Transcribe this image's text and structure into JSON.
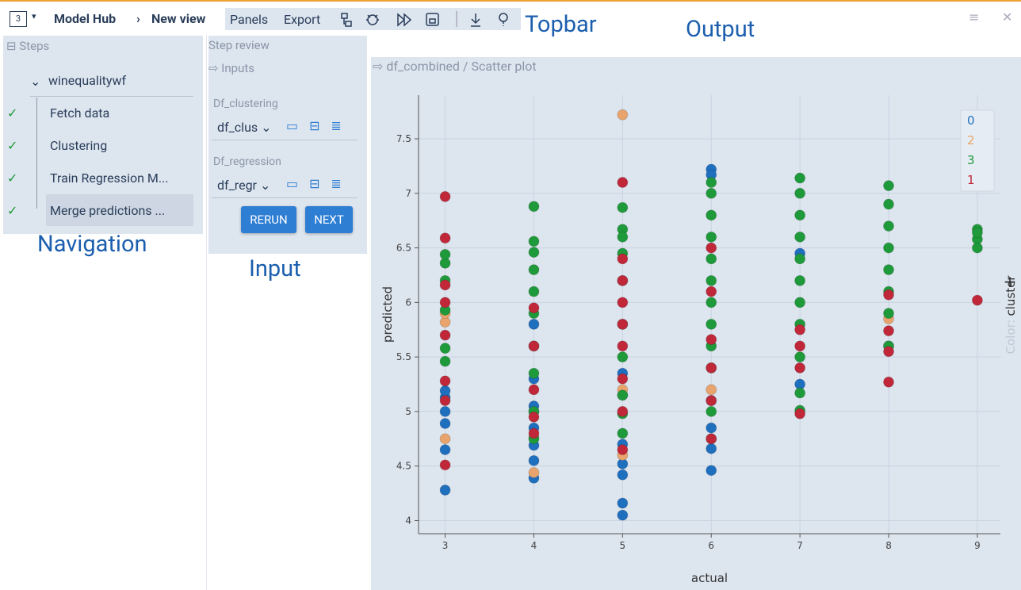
{
  "topbar": {
    "view_number": "3",
    "app": "Model Hub",
    "view": "New view",
    "menu": [
      "Panels",
      "Export"
    ]
  },
  "navigation": {
    "title": "Steps",
    "workflow": "winequalitywf",
    "steps": [
      "Fetch data",
      "Clustering",
      "Train Regression M...",
      "Merge predictions ..."
    ]
  },
  "step_review": {
    "title": "Step review",
    "section": "Inputs",
    "inputs": [
      {
        "label": "Df_clustering",
        "value": "df_clus"
      },
      {
        "label": "Df_regression",
        "value": "df_regr"
      }
    ],
    "buttons": [
      "RERUN",
      "NEXT"
    ]
  },
  "output": {
    "path": "df_combined / Scatter plot"
  },
  "annotations": [
    "Topbar",
    "Output",
    "Navigation",
    "Input"
  ],
  "chart_data": {
    "type": "scatter",
    "xlabel": "actual",
    "ylabel": "predicted",
    "legend_label": "Color:",
    "legend_title": "cluster",
    "xlim": [
      2.7,
      9.26
    ],
    "ylim": [
      3.88,
      7.9
    ],
    "xticks": [
      3,
      4,
      5,
      6,
      7,
      8,
      9
    ],
    "yticks": [
      4,
      4.5,
      5,
      5.5,
      6,
      6.5,
      7,
      7.5
    ],
    "grid": true,
    "legend_position": "upper right",
    "series": [
      {
        "name": "0",
        "color": "#1f6fbf",
        "x": [
          3,
          3,
          3,
          3,
          3,
          3,
          4,
          4,
          4,
          4,
          4,
          4,
          4,
          4,
          5,
          5,
          5,
          5,
          5,
          5,
          5,
          6,
          6,
          6,
          6,
          6,
          6,
          7,
          7,
          8
        ],
        "values": [
          4.28,
          4.65,
          4.89,
          5.0,
          5.13,
          5.19,
          4.39,
          4.55,
          4.69,
          4.85,
          5.0,
          5.05,
          5.3,
          5.8,
          4.05,
          4.16,
          4.42,
          4.52,
          4.7,
          5.15,
          5.35,
          4.46,
          4.66,
          4.85,
          5.1,
          7.22,
          7.17,
          5.25,
          6.45,
          5.6
        ]
      },
      {
        "name": "2",
        "color": "#e8a46c",
        "x": [
          3,
          3,
          3,
          4,
          4,
          5,
          5,
          5,
          6,
          8
        ],
        "values": [
          4.75,
          5.82,
          5.9,
          4.44,
          4.76,
          7.72,
          4.6,
          5.2,
          5.2,
          5.85
        ]
      },
      {
        "name": "3",
        "color": "#1f9a3a",
        "x": [
          3,
          3,
          3,
          3,
          3,
          3,
          4,
          4,
          4,
          4,
          4,
          4,
          4,
          4,
          4,
          4,
          5,
          5,
          5,
          5,
          5,
          5,
          5,
          5,
          5,
          5,
          6,
          6,
          6,
          6,
          6,
          6,
          6,
          6,
          6,
          6,
          6,
          6,
          7,
          7,
          7,
          7,
          7,
          7,
          7,
          7,
          7,
          7,
          7,
          8,
          8,
          8,
          8,
          8,
          8,
          8,
          8,
          9,
          9,
          9,
          9
        ],
        "values": [
          5.46,
          5.58,
          6.2,
          6.36,
          6.44,
          5.93,
          6.88,
          6.56,
          6.46,
          6.3,
          6.1,
          5.9,
          5.6,
          5.35,
          5.0,
          4.75,
          6.87,
          6.67,
          6.6,
          6.45,
          6.2,
          5.8,
          5.5,
          5.15,
          4.98,
          4.8,
          7.1,
          7.0,
          6.8,
          6.6,
          6.4,
          6.2,
          6.0,
          5.8,
          5.6,
          5.4,
          5.0,
          4.75,
          7.14,
          7.0,
          6.8,
          6.6,
          6.4,
          6.2,
          6.0,
          5.8,
          5.5,
          5.17,
          5.01,
          7.07,
          6.9,
          6.7,
          6.5,
          6.3,
          6.1,
          5.9,
          5.6,
          6.67,
          6.58,
          6.5,
          6.64
        ]
      },
      {
        "name": "1",
        "color": "#c0283a",
        "x": [
          3,
          3,
          3,
          3,
          3,
          3,
          3,
          3,
          4,
          4,
          4,
          4,
          4,
          5,
          5,
          5,
          5,
          5,
          5,
          5,
          5,
          5,
          6,
          6,
          6,
          6,
          6,
          6,
          7,
          7,
          7,
          7,
          8,
          8,
          8,
          8,
          9
        ],
        "values": [
          6.97,
          6.59,
          6.16,
          6.0,
          5.7,
          5.28,
          5.1,
          4.51,
          5.95,
          5.6,
          5.2,
          4.95,
          4.8,
          7.1,
          6.4,
          6.2,
          6.0,
          5.8,
          5.6,
          5.3,
          5.0,
          4.65,
          6.5,
          6.1,
          5.66,
          5.4,
          5.1,
          4.75,
          5.75,
          5.6,
          5.4,
          4.98,
          6.07,
          5.74,
          5.55,
          5.27,
          6.02
        ]
      }
    ]
  }
}
